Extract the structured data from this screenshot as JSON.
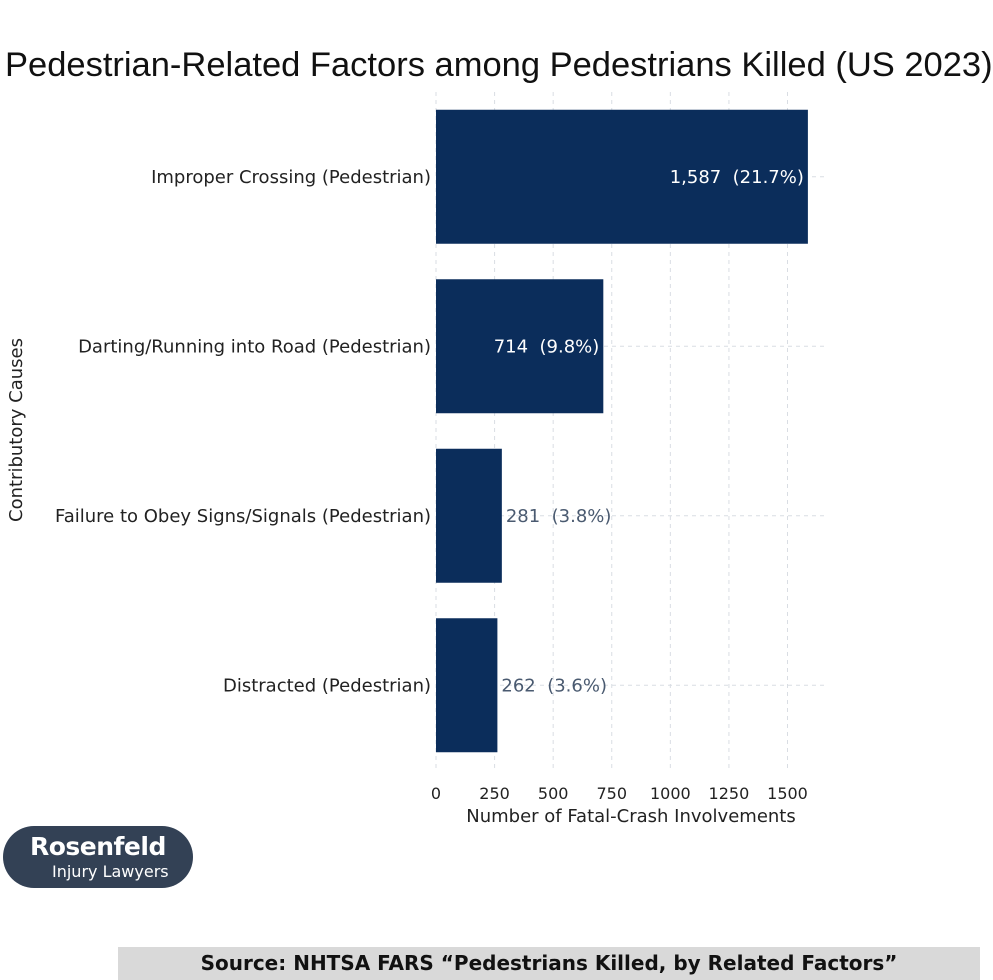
{
  "chart_data": {
    "type": "bar",
    "orientation": "horizontal",
    "title": "Pedestrian-Related Factors among Pedestrians Killed (US 2023)",
    "xlabel": "Number of Fatal-Crash Involvements",
    "ylabel": "Contributory Causes",
    "categories": [
      "Improper Crossing (Pedestrian)",
      "Darting/Running into Road (Pedestrian)",
      "Failure to Obey Signs/Signals (Pedestrian)",
      "Distracted (Pedestrian)"
    ],
    "values": [
      1587,
      714,
      281,
      262
    ],
    "data_labels": [
      "1,587  (21.7%)",
      "714  (9.8%)",
      "281  (3.8%)",
      "262  (3.6%)"
    ],
    "x_ticks": [
      "0",
      "250",
      "500",
      "750",
      "1000",
      "1250",
      "1500"
    ],
    "x_tick_values": [
      0,
      250,
      500,
      750,
      1000,
      1250,
      1500
    ],
    "xlim": [
      0,
      1660
    ],
    "grid": true,
    "bar_color": "#0b2d5b",
    "inside_label_color": "#ffffff",
    "outside_label_color": "#4a5a70"
  },
  "logo": {
    "name": "Rosenfeld",
    "subtitle": "Injury Lawyers",
    "background": "#334155"
  },
  "source": "Source: NHTSA FARS “Pedestrians Killed, by Related Factors”"
}
